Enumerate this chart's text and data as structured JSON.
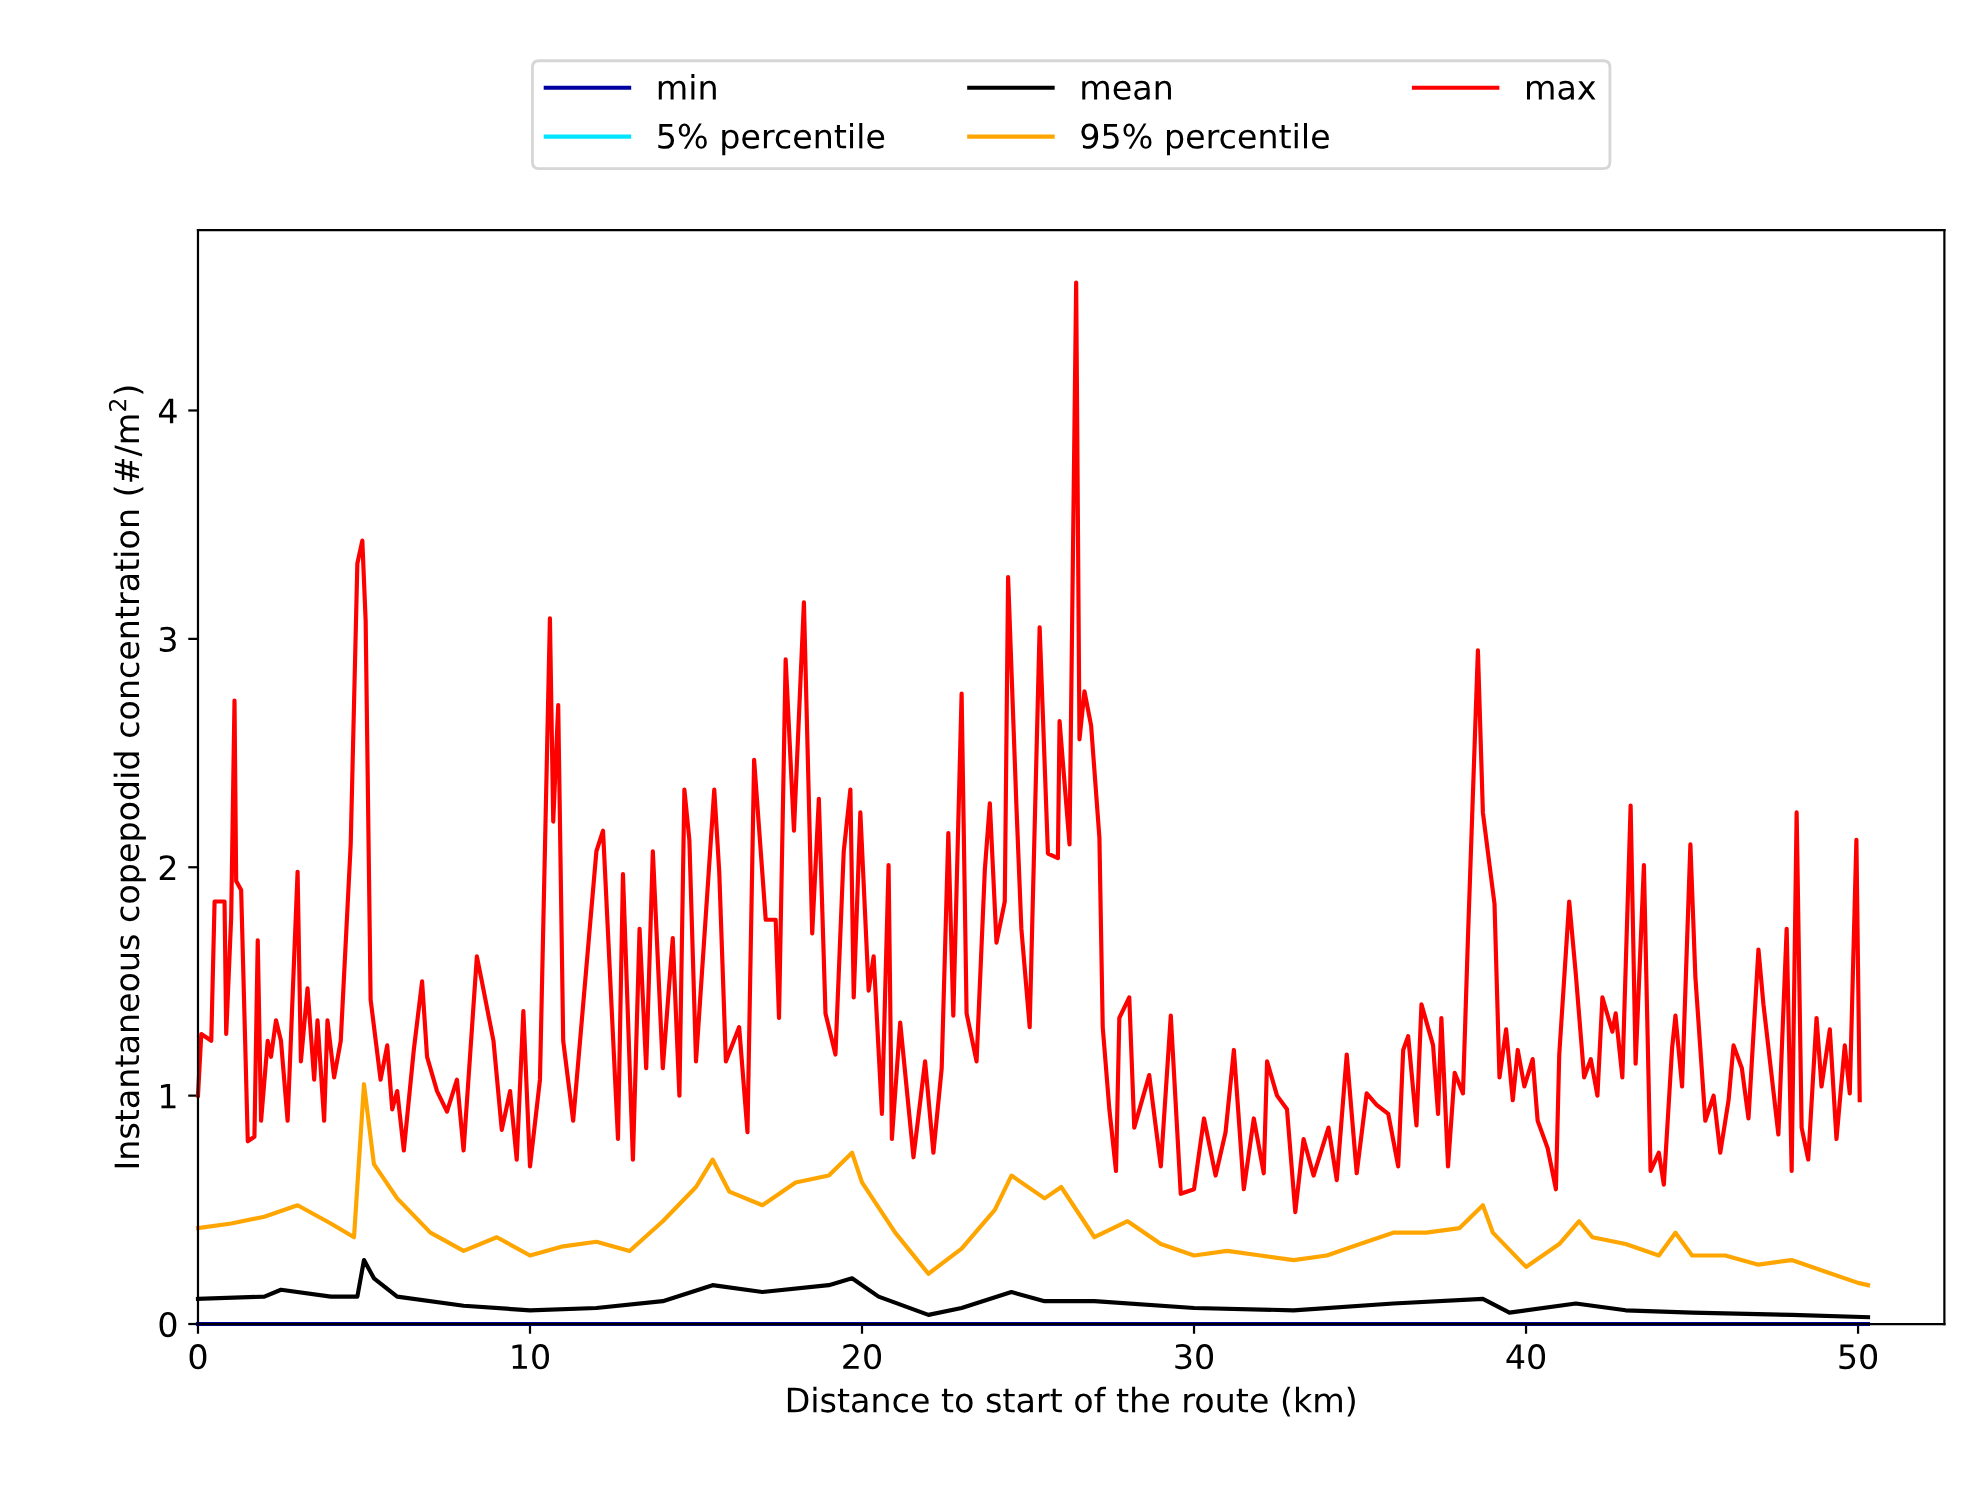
{
  "chart_data": {
    "type": "line",
    "xlabel": "Distance to start of the route (km)",
    "ylabel": "Instantaneous copepodid concentration (#/m$^{2}$)",
    "xlim": [
      0,
      52.6
    ],
    "ylim": [
      0,
      4.79
    ],
    "xticks": [
      0,
      10,
      20,
      30,
      40,
      50
    ],
    "yticks": [
      0,
      1,
      2,
      3,
      4
    ],
    "grid": false,
    "legend": "top",
    "marker": "none",
    "line_style": "solid",
    "series": [
      {
        "name": "min",
        "color": "#0000a0",
        "x": [
          0,
          50.3
        ],
        "values": [
          0,
          0
        ]
      },
      {
        "name": "5% percentile",
        "color": "#00e5ff"
      },
      {
        "name": "mean",
        "color": "#000000",
        "x": [
          0,
          2,
          2.5,
          4,
          4.8,
          5.0,
          5.3,
          6,
          8,
          10,
          12,
          14,
          15.5,
          17,
          19,
          19.7,
          20.5,
          22,
          23,
          24.5,
          25.5,
          27,
          30,
          33,
          36,
          38.7,
          39.5,
          41.5,
          43,
          45,
          48,
          50.3
        ],
        "values": [
          0.11,
          0.12,
          0.15,
          0.12,
          0.12,
          0.28,
          0.2,
          0.12,
          0.08,
          0.06,
          0.07,
          0.1,
          0.17,
          0.14,
          0.17,
          0.2,
          0.12,
          0.04,
          0.07,
          0.14,
          0.1,
          0.1,
          0.07,
          0.06,
          0.09,
          0.11,
          0.05,
          0.09,
          0.06,
          0.05,
          0.04,
          0.03
        ]
      },
      {
        "name": "95% percentile",
        "color": "#ffa500",
        "x": [
          0,
          1,
          2,
          3,
          4,
          4.7,
          5.0,
          5.3,
          6,
          7,
          8,
          9,
          10,
          11,
          12,
          13,
          14,
          15,
          15.5,
          16,
          17,
          18,
          19,
          19.7,
          20,
          21,
          22,
          23,
          24,
          24.5,
          25.5,
          26,
          27,
          28,
          29,
          30,
          31,
          32,
          33,
          34,
          35,
          36,
          37,
          38,
          38.7,
          39,
          40,
          41,
          41.6,
          42,
          43,
          44,
          44.5,
          45,
          46,
          47,
          48,
          49,
          50,
          50.3
        ],
        "values": [
          0.42,
          0.44,
          0.47,
          0.52,
          0.44,
          0.38,
          1.05,
          0.7,
          0.55,
          0.4,
          0.32,
          0.38,
          0.3,
          0.34,
          0.36,
          0.32,
          0.45,
          0.6,
          0.72,
          0.58,
          0.52,
          0.62,
          0.65,
          0.75,
          0.62,
          0.4,
          0.22,
          0.33,
          0.5,
          0.65,
          0.55,
          0.6,
          0.38,
          0.45,
          0.35,
          0.3,
          0.32,
          0.3,
          0.28,
          0.3,
          0.35,
          0.4,
          0.4,
          0.42,
          0.52,
          0.4,
          0.25,
          0.35,
          0.45,
          0.38,
          0.35,
          0.3,
          0.4,
          0.3,
          0.3,
          0.26,
          0.28,
          0.23,
          0.18,
          0.17
        ]
      },
      {
        "name": "max",
        "color": "#ff0000",
        "x": [
          0.0,
          0.1,
          0.4,
          0.5,
          0.8,
          0.85,
          1.0,
          1.1,
          1.15,
          1.3,
          1.5,
          1.7,
          1.8,
          1.9,
          2.1,
          2.2,
          2.35,
          2.5,
          2.7,
          3.0,
          3.1,
          3.3,
          3.5,
          3.6,
          3.8,
          3.9,
          4.1,
          4.3,
          4.6,
          4.8,
          4.95,
          5.05,
          5.2,
          5.5,
          5.7,
          5.85,
          6.0,
          6.2,
          6.5,
          6.75,
          6.9,
          7.2,
          7.5,
          7.8,
          8.0,
          8.4,
          8.55,
          8.9,
          9.15,
          9.4,
          9.6,
          9.8,
          10.0,
          10.3,
          10.6,
          10.7,
          10.85,
          11.0,
          11.3,
          12.0,
          12.2,
          12.65,
          12.8,
          13.1,
          13.3,
          13.5,
          13.7,
          14.0,
          14.3,
          14.5,
          14.65,
          14.8,
          15.0,
          15.55,
          15.7,
          15.9,
          16.3,
          16.55,
          16.75,
          17.1,
          17.4,
          17.5,
          17.7,
          17.95,
          18.25,
          18.5,
          18.7,
          18.9,
          19.2,
          19.45,
          19.65,
          19.75,
          19.95,
          20.2,
          20.35,
          20.6,
          20.8,
          20.9,
          21.15,
          21.55,
          21.9,
          22.15,
          22.4,
          22.6,
          22.75,
          23.0,
          23.15,
          23.45,
          23.7,
          23.85,
          24.05,
          24.3,
          24.4,
          24.65,
          24.8,
          25.05,
          25.35,
          25.6,
          25.9,
          25.95,
          26.25,
          26.45,
          26.55,
          26.7,
          26.9,
          27.15,
          27.25,
          27.45,
          27.65,
          27.75,
          28.05,
          28.2,
          28.65,
          29.0,
          29.3,
          29.6,
          30.0,
          30.3,
          30.65,
          30.95,
          31.2,
          31.5,
          31.8,
          32.1,
          32.2,
          32.5,
          32.8,
          33.05,
          33.3,
          33.6,
          34.05,
          34.3,
          34.6,
          34.9,
          35.2,
          35.5,
          35.85,
          36.15,
          36.3,
          36.45,
          36.7,
          36.85,
          37.2,
          37.35,
          37.45,
          37.65,
          37.85,
          38.1,
          38.25,
          38.55,
          38.7,
          38.9,
          39.05,
          39.2,
          39.4,
          39.6,
          39.75,
          39.95,
          40.2,
          40.35,
          40.65,
          40.9,
          41.0,
          41.3,
          41.5,
          41.75,
          41.95,
          42.15,
          42.3,
          42.6,
          42.7,
          42.9,
          43.15,
          43.3,
          43.55,
          43.75,
          44.0,
          44.15,
          44.4,
          44.5,
          44.7,
          44.95,
          45.1,
          45.4,
          45.65,
          45.85,
          46.1,
          46.25,
          46.5,
          46.7,
          47.0,
          47.15,
          47.45,
          47.6,
          47.85,
          48.0,
          48.15,
          48.3,
          48.5,
          48.75,
          48.9,
          49.15,
          49.35,
          49.6,
          49.75,
          49.95,
          50.05
        ],
        "values": [
          1.0,
          1.27,
          1.24,
          1.85,
          1.85,
          1.27,
          1.78,
          2.73,
          1.94,
          1.9,
          0.8,
          0.82,
          1.68,
          0.89,
          1.24,
          1.17,
          1.33,
          1.24,
          0.89,
          1.98,
          1.15,
          1.47,
          1.07,
          1.33,
          0.89,
          1.33,
          1.08,
          1.24,
          2.1,
          3.33,
          3.43,
          3.08,
          1.42,
          1.07,
          1.22,
          0.94,
          1.02,
          0.76,
          1.2,
          1.5,
          1.17,
          1.02,
          0.93,
          1.07,
          0.76,
          1.61,
          1.5,
          1.24,
          0.85,
          1.02,
          0.72,
          1.37,
          0.69,
          1.07,
          3.09,
          2.2,
          2.71,
          1.24,
          0.89,
          2.07,
          2.16,
          0.81,
          1.97,
          0.72,
          1.73,
          1.12,
          2.07,
          1.12,
          1.69,
          1.0,
          2.34,
          2.12,
          1.15,
          2.34,
          1.98,
          1.15,
          1.3,
          0.84,
          2.47,
          1.77,
          1.77,
          1.34,
          2.91,
          2.16,
          3.16,
          1.71,
          2.3,
          1.36,
          1.18,
          2.07,
          2.34,
          1.43,
          2.24,
          1.46,
          1.61,
          0.92,
          2.01,
          0.81,
          1.32,
          0.73,
          1.15,
          0.75,
          1.12,
          2.15,
          1.35,
          2.76,
          1.36,
          1.15,
          1.99,
          2.28,
          1.67,
          1.85,
          3.27,
          2.27,
          1.73,
          1.3,
          3.05,
          2.06,
          2.04,
          2.64,
          2.1,
          4.56,
          2.56,
          2.77,
          2.62,
          2.13,
          1.3,
          0.94,
          0.67,
          1.34,
          1.43,
          0.86,
          1.09,
          0.69,
          1.35,
          0.57,
          0.59,
          0.9,
          0.65,
          0.84,
          1.2,
          0.59,
          0.9,
          0.66,
          1.15,
          1.0,
          0.94,
          0.49,
          0.81,
          0.65,
          0.86,
          0.63,
          1.18,
          0.66,
          1.01,
          0.96,
          0.92,
          0.69,
          1.2,
          1.26,
          0.87,
          1.4,
          1.22,
          0.92,
          1.34,
          0.69,
          1.1,
          1.01,
          1.69,
          2.95,
          2.24,
          2.01,
          1.84,
          1.08,
          1.29,
          0.98,
          1.2,
          1.04,
          1.16,
          0.89,
          0.77,
          0.59,
          1.18,
          1.85,
          1.53,
          1.08,
          1.16,
          1.0,
          1.43,
          1.28,
          1.36,
          1.08,
          2.27,
          1.14,
          2.01,
          0.67,
          0.75,
          0.61,
          1.21,
          1.35,
          1.04,
          2.1,
          1.52,
          0.89,
          1.0,
          0.75,
          0.98,
          1.22,
          1.12,
          0.9,
          1.64,
          1.4,
          1.02,
          0.83,
          1.73,
          0.67,
          2.24,
          0.86,
          0.72,
          1.34,
          1.04,
          1.29,
          0.81,
          1.22,
          1.01,
          2.12,
          0.98
        ]
      }
    ]
  }
}
